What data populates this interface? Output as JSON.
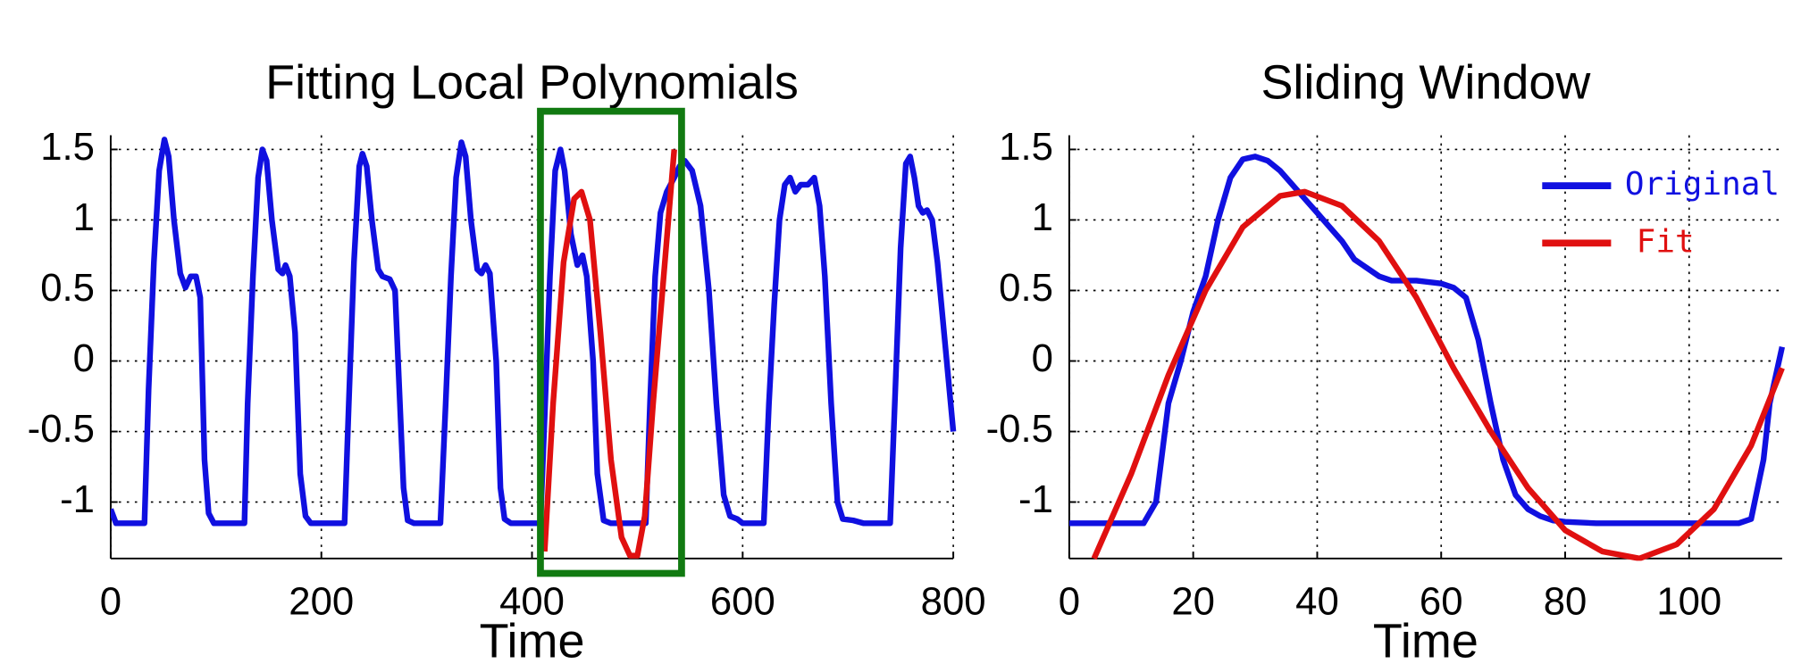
{
  "chart_data": [
    {
      "type": "line",
      "title": "Fitting Local Polynomials",
      "x_label": "Time",
      "xlim": [
        0,
        800
      ],
      "xticks": [
        0,
        200,
        400,
        600,
        800
      ],
      "ylim": [
        -1.4,
        1.6
      ],
      "yticks": [
        -1,
        -0.5,
        0,
        0.5,
        1,
        1.5
      ],
      "grid": true,
      "highlight_x": [
        408,
        542
      ],
      "highlight_color": "#117a11",
      "series": [
        {
          "color": "#1010e0",
          "x": [
            0,
            5,
            32,
            36,
            41,
            46,
            51,
            55,
            60,
            66,
            71,
            76,
            81,
            85,
            89,
            93,
            98,
            127,
            130,
            135,
            140,
            144,
            148,
            153,
            159,
            163,
            166,
            170,
            175,
            180,
            185,
            190,
            222,
            226,
            231,
            236,
            239,
            243,
            248,
            254,
            258,
            265,
            270,
            274,
            278,
            282,
            288,
            313,
            318,
            323,
            328,
            333,
            337,
            342,
            348,
            352,
            356,
            360,
            366,
            370,
            374,
            380,
            408,
            412,
            417,
            422,
            427,
            431,
            437,
            443,
            448,
            452,
            458,
            462,
            468,
            475,
            508,
            512,
            517,
            522,
            528,
            535,
            540,
            545,
            552,
            560,
            568,
            575,
            582,
            588,
            595,
            600,
            620,
            625,
            630,
            635,
            640,
            645,
            650,
            655,
            662,
            668,
            673,
            678,
            684,
            690,
            695,
            705,
            715,
            720,
            740,
            745,
            750,
            755,
            759,
            763,
            767,
            771,
            775,
            780,
            785,
            790,
            795,
            800
          ],
          "values": [
            -1.05,
            -1.15,
            -1.15,
            -0.2,
            0.7,
            1.35,
            1.57,
            1.45,
            1.0,
            0.62,
            0.52,
            0.6,
            0.6,
            0.45,
            -0.7,
            -1.08,
            -1.15,
            -1.15,
            -0.3,
            0.6,
            1.3,
            1.5,
            1.42,
            1.0,
            0.65,
            0.62,
            0.68,
            0.6,
            0.2,
            -0.8,
            -1.1,
            -1.15,
            -1.15,
            -0.3,
            0.7,
            1.38,
            1.47,
            1.38,
            1.0,
            0.65,
            0.6,
            0.58,
            0.5,
            -0.2,
            -0.9,
            -1.13,
            -1.15,
            -1.15,
            -0.3,
            0.6,
            1.3,
            1.55,
            1.45,
            1.0,
            0.65,
            0.62,
            0.68,
            0.62,
            0.0,
            -0.9,
            -1.12,
            -1.15,
            -1.15,
            -0.4,
            0.6,
            1.35,
            1.5,
            1.35,
            0.9,
            0.68,
            0.75,
            0.6,
            0.0,
            -0.8,
            -1.13,
            -1.15,
            -1.15,
            -0.3,
            0.6,
            1.05,
            1.2,
            1.3,
            1.38,
            1.42,
            1.35,
            1.1,
            0.5,
            -0.3,
            -0.95,
            -1.1,
            -1.12,
            -1.15,
            -1.15,
            -0.3,
            0.4,
            1.0,
            1.25,
            1.3,
            1.2,
            1.25,
            1.25,
            1.3,
            1.1,
            0.6,
            -0.3,
            -1.0,
            -1.12,
            -1.13,
            -1.15,
            -1.15,
            -1.15,
            -0.2,
            0.8,
            1.4,
            1.45,
            1.3,
            1.1,
            1.05,
            1.07,
            1.0,
            0.7,
            0.3,
            -0.1,
            -0.5
          ]
        },
        {
          "color": "#e01010",
          "x": [
            412,
            420,
            430,
            440,
            447,
            455,
            465,
            475,
            485,
            493,
            500,
            507,
            515,
            525,
            535
          ],
          "values": [
            -1.35,
            -0.3,
            0.7,
            1.15,
            1.2,
            1.0,
            0.2,
            -0.7,
            -1.25,
            -1.38,
            -1.38,
            -1.1,
            -0.3,
            0.6,
            1.5
          ]
        }
      ]
    },
    {
      "type": "line",
      "title": "Sliding Window",
      "x_label": "Time",
      "xlim": [
        0,
        115
      ],
      "xticks": [
        0,
        20,
        40,
        60,
        80,
        100
      ],
      "ylim": [
        -1.4,
        1.6
      ],
      "yticks": [
        -1,
        -0.5,
        0,
        0.5,
        1,
        1.5
      ],
      "grid": true,
      "legend": "upper right",
      "series": [
        {
          "name": "Original",
          "color": "#1010e0",
          "x": [
            0,
            12,
            14,
            16,
            18,
            20,
            22,
            24,
            26,
            28,
            30,
            32,
            34,
            36,
            38,
            40,
            42,
            44,
            46,
            48,
            50,
            52,
            56,
            60,
            62,
            64,
            66,
            68,
            70,
            72,
            74,
            76,
            78,
            80,
            85,
            100,
            108,
            110,
            112,
            113,
            115
          ],
          "values": [
            -1.15,
            -1.15,
            -1.0,
            -0.3,
            0.0,
            0.35,
            0.6,
            1.0,
            1.3,
            1.43,
            1.45,
            1.42,
            1.35,
            1.25,
            1.15,
            1.05,
            0.95,
            0.85,
            0.72,
            0.66,
            0.6,
            0.57,
            0.57,
            0.55,
            0.52,
            0.45,
            0.15,
            -0.3,
            -0.7,
            -0.95,
            -1.05,
            -1.1,
            -1.13,
            -1.14,
            -1.15,
            -1.15,
            -1.15,
            -1.12,
            -0.7,
            -0.3,
            0.1
          ]
        },
        {
          "name": "Fit",
          "color": "#e01010",
          "x": [
            4,
            10,
            16,
            22,
            28,
            34,
            38,
            44,
            50,
            56,
            62,
            68,
            74,
            80,
            86,
            92,
            98,
            104,
            110,
            115
          ],
          "values": [
            -1.4,
            -0.8,
            -0.1,
            0.5,
            0.95,
            1.17,
            1.2,
            1.1,
            0.85,
            0.45,
            -0.05,
            -0.5,
            -0.9,
            -1.2,
            -1.35,
            -1.4,
            -1.3,
            -1.05,
            -0.6,
            -0.05
          ]
        }
      ]
    }
  ]
}
